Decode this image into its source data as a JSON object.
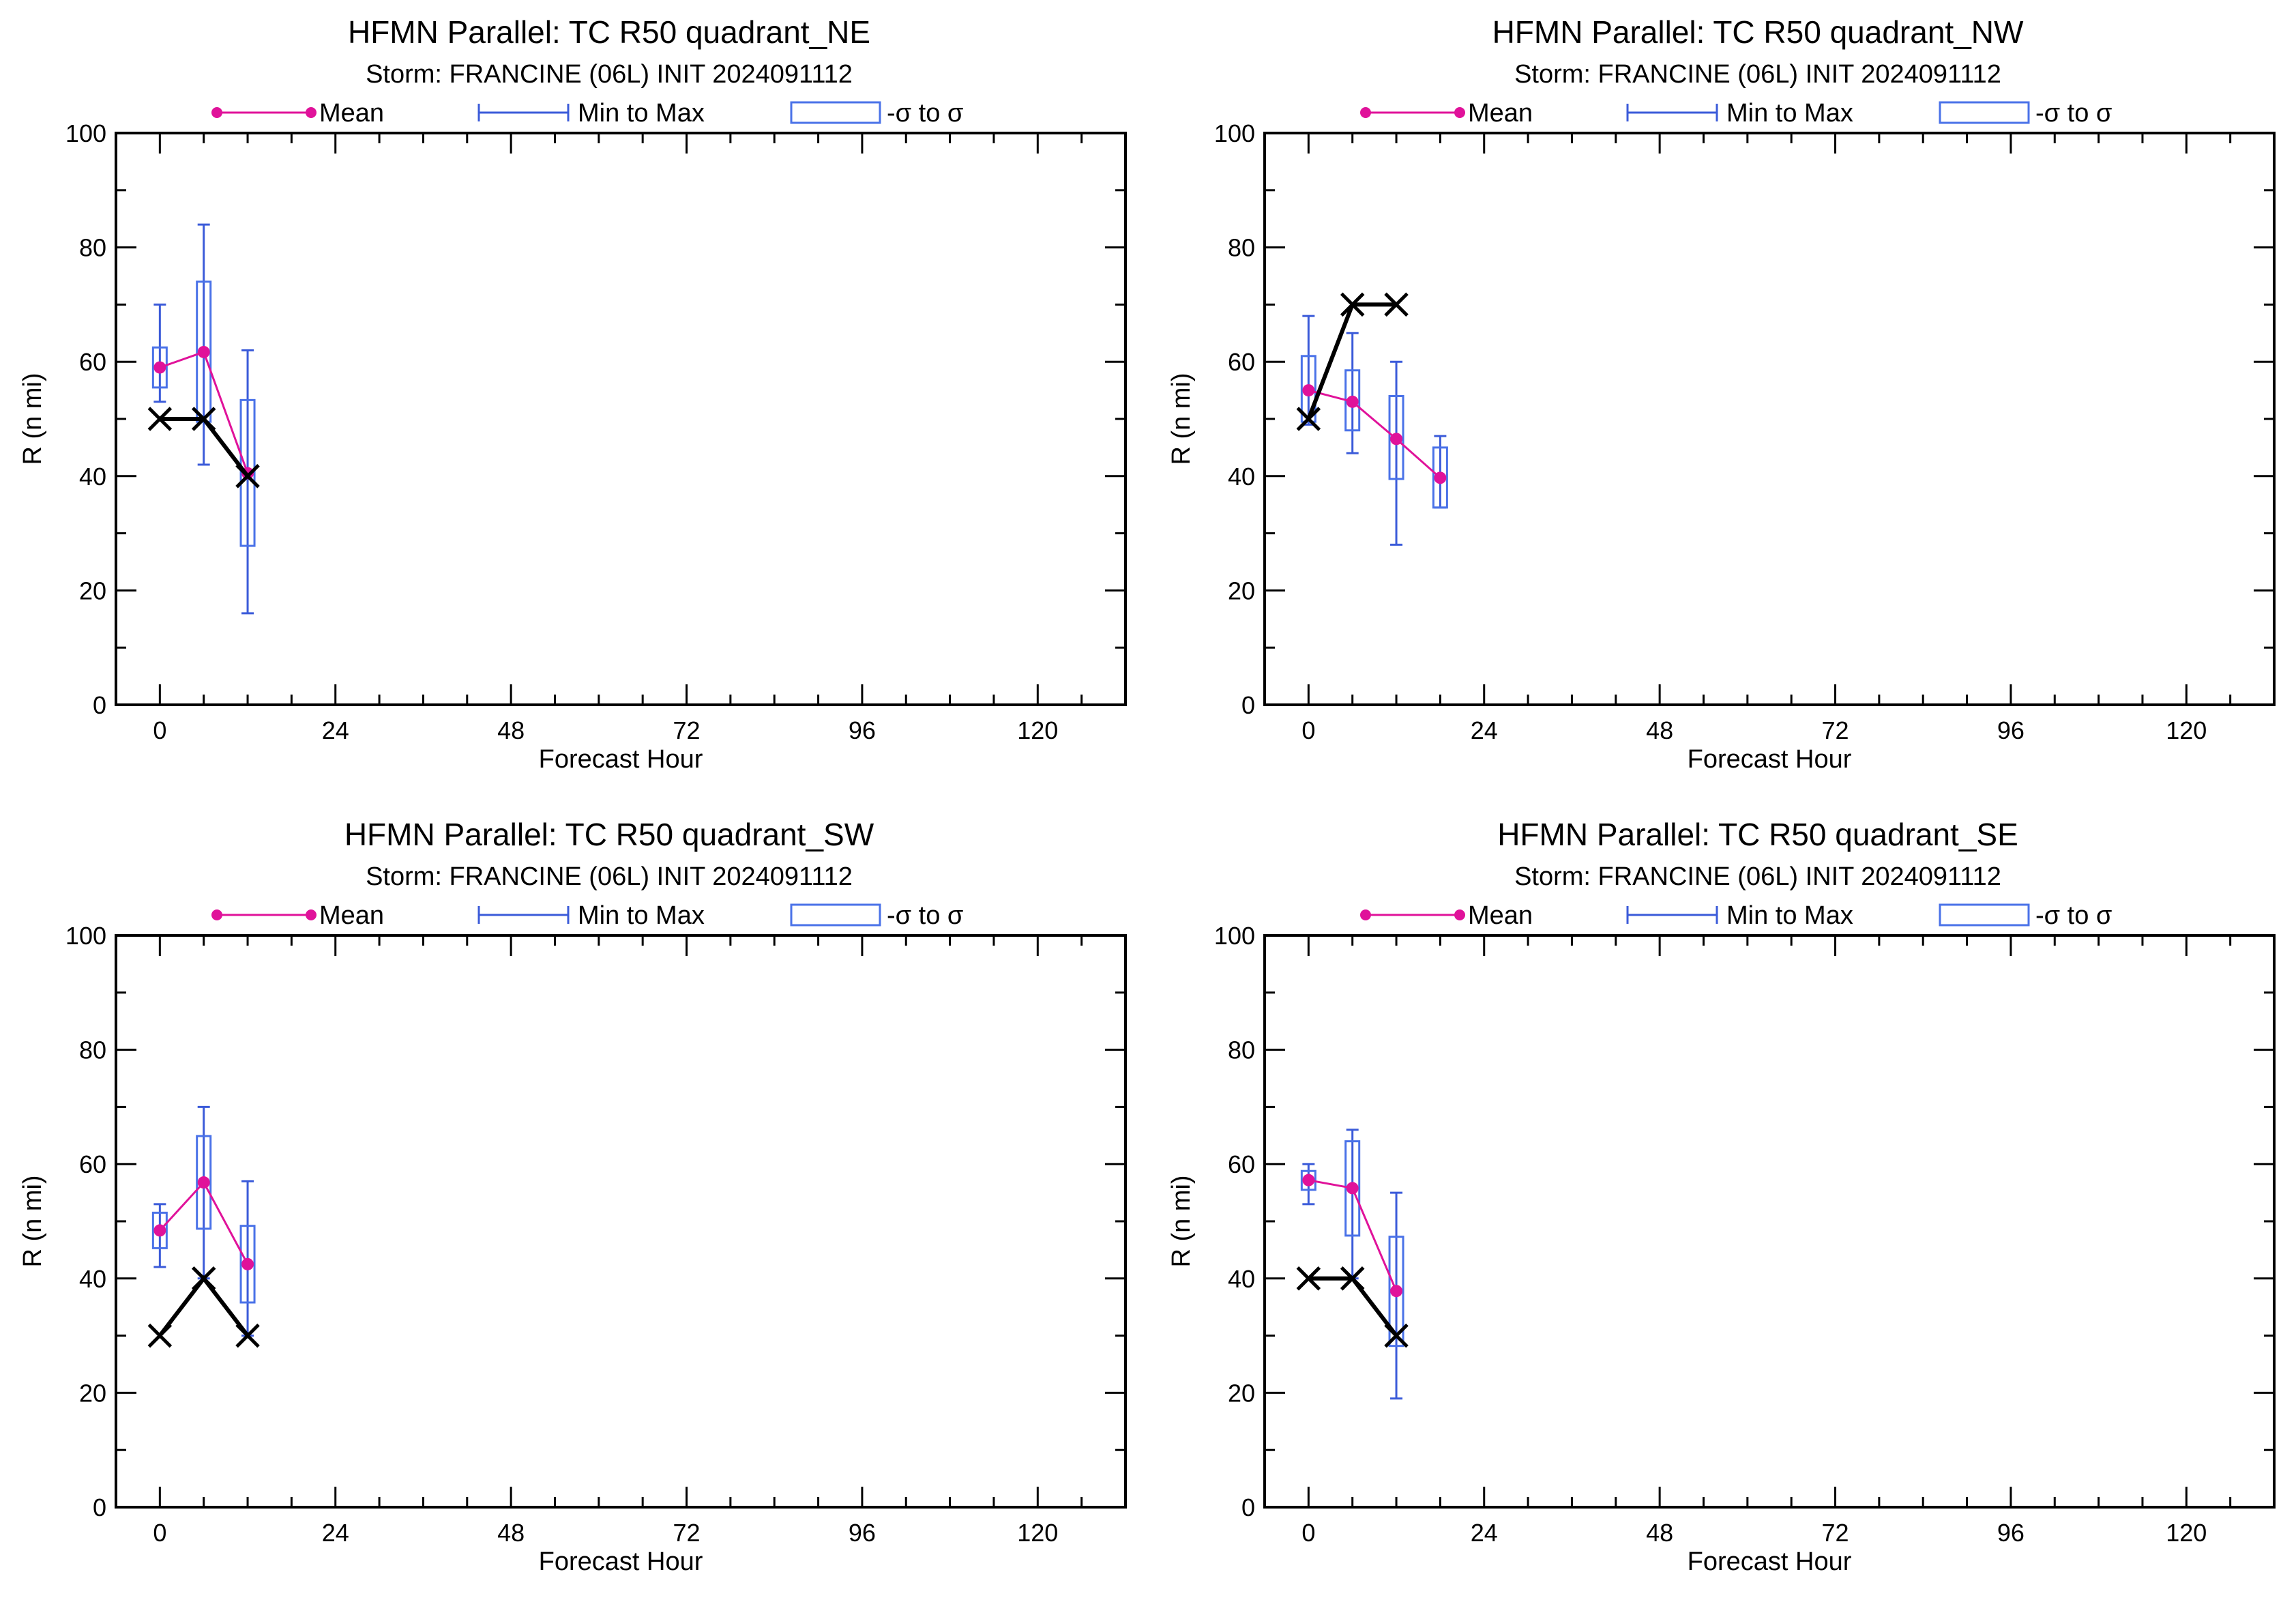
{
  "legend": {
    "mean_label": "Mean",
    "minmax_label": "Min to Max",
    "sigma_label": "-σ to σ",
    "colors": {
      "mean": "#e0129a",
      "minmax": "#3b5bd9",
      "sigma": "#4a72e8",
      "observed": "#000000"
    }
  },
  "chart_data": [
    {
      "type": "box",
      "title": "HFMN Parallel: TC  R50 quadrant_NE",
      "subtitle": "Storm: FRANCINE (06L) INIT 2024091112",
      "xlabel": "Forecast Hour",
      "ylabel": "R (n mi)",
      "xlim": [
        -6,
        132
      ],
      "ylim": [
        0,
        100
      ],
      "xticks": [
        0,
        24,
        48,
        72,
        96,
        120
      ],
      "yticks": [
        0,
        20,
        40,
        60,
        80,
        100
      ],
      "x_tick_labels": [
        "0",
        "24",
        "48",
        "72",
        "96",
        "120"
      ],
      "y_tick_labels": [
        "0",
        "20",
        "40",
        "60",
        "80",
        "100"
      ],
      "forecast": [
        {
          "x": 0,
          "mean": 59,
          "min": 53,
          "max": 70,
          "sigma_low": 55.5,
          "sigma_high": 62.5
        },
        {
          "x": 6,
          "mean": 61.7,
          "min": 42,
          "max": 84,
          "sigma_low": 49.5,
          "sigma_high": 74
        },
        {
          "x": 12,
          "mean": 40.5,
          "min": 16,
          "max": 62,
          "sigma_low": 27.8,
          "sigma_high": 53.3
        }
      ],
      "observed": [
        {
          "x": 0,
          "y": 50
        },
        {
          "x": 6,
          "y": 50
        },
        {
          "x": 12,
          "y": 40
        }
      ]
    },
    {
      "type": "box",
      "title": "HFMN Parallel: TC  R50 quadrant_NW",
      "subtitle": "Storm: FRANCINE (06L) INIT 2024091112",
      "xlabel": "Forecast Hour",
      "ylabel": "R (n mi)",
      "xlim": [
        -6,
        132
      ],
      "ylim": [
        0,
        100
      ],
      "xticks": [
        0,
        24,
        48,
        72,
        96,
        120
      ],
      "yticks": [
        0,
        20,
        40,
        60,
        80,
        100
      ],
      "x_tick_labels": [
        "0",
        "24",
        "48",
        "72",
        "96",
        "120"
      ],
      "y_tick_labels": [
        "0",
        "20",
        "40",
        "60",
        "80",
        "100"
      ],
      "forecast": [
        {
          "x": 0,
          "mean": 55,
          "min": 49,
          "max": 68,
          "sigma_low": 49.5,
          "sigma_high": 61
        },
        {
          "x": 6,
          "mean": 53,
          "min": 44,
          "max": 65,
          "sigma_low": 48,
          "sigma_high": 58.5
        },
        {
          "x": 12,
          "mean": 46.5,
          "min": 28,
          "max": 60,
          "sigma_low": 39.5,
          "sigma_high": 54
        },
        {
          "x": 18,
          "mean": 39.7,
          "min": 34.5,
          "max": 47,
          "sigma_low": 34.5,
          "sigma_high": 45
        }
      ],
      "observed": [
        {
          "x": 0,
          "y": 50
        },
        {
          "x": 6,
          "y": 70
        },
        {
          "x": 12,
          "y": 70
        }
      ]
    },
    {
      "type": "box",
      "title": "HFMN Parallel: TC  R50 quadrant_SW",
      "subtitle": "Storm: FRANCINE (06L) INIT 2024091112",
      "xlabel": "Forecast Hour",
      "ylabel": "R (n mi)",
      "xlim": [
        -6,
        132
      ],
      "ylim": [
        0,
        100
      ],
      "xticks": [
        0,
        24,
        48,
        72,
        96,
        120
      ],
      "yticks": [
        0,
        20,
        40,
        60,
        80,
        100
      ],
      "x_tick_labels": [
        "0",
        "24",
        "48",
        "72",
        "96",
        "120"
      ],
      "y_tick_labels": [
        "0",
        "20",
        "40",
        "60",
        "80",
        "100"
      ],
      "forecast": [
        {
          "x": 0,
          "mean": 48.4,
          "min": 42,
          "max": 53,
          "sigma_low": 45.3,
          "sigma_high": 51.5
        },
        {
          "x": 6,
          "mean": 56.8,
          "min": 40,
          "max": 70,
          "sigma_low": 48.7,
          "sigma_high": 64.9
        },
        {
          "x": 12,
          "mean": 42.5,
          "min": 30,
          "max": 57,
          "sigma_low": 35.8,
          "sigma_high": 49.2
        }
      ],
      "observed": [
        {
          "x": 0,
          "y": 30
        },
        {
          "x": 6,
          "y": 40
        },
        {
          "x": 12,
          "y": 30
        }
      ]
    },
    {
      "type": "box",
      "title": "HFMN Parallel: TC  R50 quadrant_SE",
      "subtitle": "Storm: FRANCINE (06L) INIT 2024091112",
      "xlabel": "Forecast Hour",
      "ylabel": "R (n mi)",
      "xlim": [
        -6,
        132
      ],
      "ylim": [
        0,
        100
      ],
      "xticks": [
        0,
        24,
        48,
        72,
        96,
        120
      ],
      "yticks": [
        0,
        20,
        40,
        60,
        80,
        100
      ],
      "x_tick_labels": [
        "0",
        "24",
        "48",
        "72",
        "96",
        "120"
      ],
      "y_tick_labels": [
        "0",
        "20",
        "40",
        "60",
        "80",
        "100"
      ],
      "forecast": [
        {
          "x": 0,
          "mean": 57.2,
          "min": 53,
          "max": 60,
          "sigma_low": 55.5,
          "sigma_high": 58.8
        },
        {
          "x": 6,
          "mean": 55.8,
          "min": 40,
          "max": 66,
          "sigma_low": 47.5,
          "sigma_high": 64
        },
        {
          "x": 12,
          "mean": 37.8,
          "min": 19,
          "max": 55,
          "sigma_low": 28.2,
          "sigma_high": 47.3
        }
      ],
      "observed": [
        {
          "x": 0,
          "y": 40
        },
        {
          "x": 6,
          "y": 40
        },
        {
          "x": 12,
          "y": 30
        }
      ]
    }
  ]
}
